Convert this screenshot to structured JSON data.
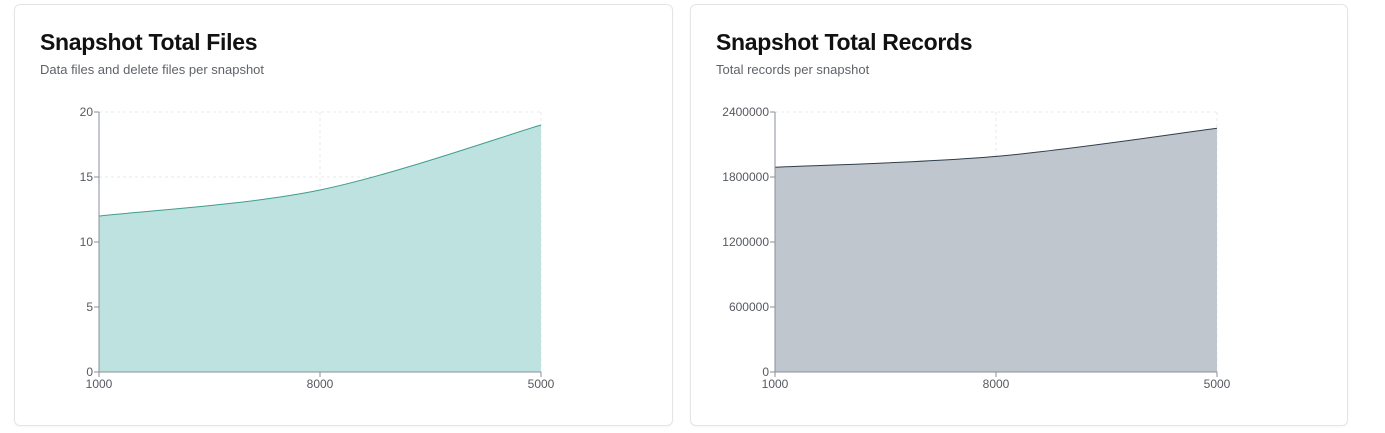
{
  "cards": [
    {
      "title": "Snapshot Total Files",
      "subtitle": "Data files and delete files per snapshot"
    },
    {
      "title": "Snapshot Total Records",
      "subtitle": "Total records per snapshot"
    }
  ],
  "chart_data": [
    {
      "type": "area",
      "title": "Snapshot Total Files",
      "subtitle": "Data files and delete files per snapshot",
      "x": [
        "1000",
        "8000",
        "5000"
      ],
      "ylim": [
        0,
        20
      ],
      "yticks": [
        0,
        5,
        10,
        15,
        20
      ],
      "grid": true,
      "series": [
        {
          "values": [
            12,
            14,
            19
          ],
          "color": "#3f9e8e",
          "fill": "#bee2df"
        },
        {
          "values": [
            0,
            0,
            0
          ],
          "color": "#e0896b",
          "fill": "none"
        }
      ]
    },
    {
      "type": "area",
      "title": "Snapshot Total Records",
      "subtitle": "Total records per snapshot",
      "x": [
        "1000",
        "8000",
        "5000"
      ],
      "ylim": [
        0,
        2400000
      ],
      "yticks": [
        0,
        600000,
        1200000,
        1800000,
        2400000
      ],
      "grid": true,
      "series": [
        {
          "values": [
            1890000,
            1990000,
            2250000
          ],
          "color": "#2f3e4c",
          "fill": "#bfc6cd"
        }
      ]
    }
  ]
}
